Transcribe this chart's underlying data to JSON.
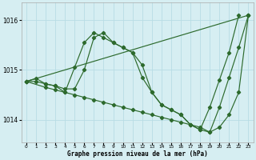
{
  "xlabel": "Graphe pression niveau de la mer (hPa)",
  "background_color": "#d6eef2",
  "grid_color": "#b8dde4",
  "line_color": "#2d6a2d",
  "xlim": [
    -0.5,
    23.5
  ],
  "ylim": [
    1013.55,
    1016.35
  ],
  "yticks": [
    1014,
    1015,
    1016
  ],
  "xticks": [
    0,
    1,
    2,
    3,
    4,
    5,
    6,
    7,
    8,
    9,
    10,
    11,
    12,
    13,
    14,
    15,
    16,
    17,
    18,
    19,
    20,
    21,
    22,
    23
  ],
  "series": [
    {
      "x": [
        0,
        1,
        2,
        3,
        4,
        5,
        6,
        7,
        8,
        9,
        10,
        11,
        12,
        13,
        14,
        15,
        16,
        17,
        18,
        19,
        20,
        21,
        22,
        23
      ],
      "y": [
        1014.77,
        1014.83,
        1014.72,
        1014.68,
        1014.55,
        1015.05,
        1015.55,
        1015.75,
        1015.65,
        1015.55,
        1015.45,
        1015.35,
        1014.85,
        1014.55,
        1014.3,
        1014.2,
        1014.1,
        1013.9,
        1013.8,
        1014.25,
        1014.8,
        1015.35,
        1016.1,
        null
      ]
    },
    {
      "x": [
        0,
        23
      ],
      "y": [
        1014.77,
        1016.1
      ]
    },
    {
      "x": [
        0,
        2,
        3,
        4,
        5,
        6,
        7,
        8,
        9,
        10,
        11,
        12,
        13,
        14,
        15,
        16,
        17,
        18,
        19,
        20,
        21,
        22,
        23
      ],
      "y": [
        1014.77,
        1014.65,
        1014.6,
        1014.55,
        1014.5,
        1014.45,
        1014.4,
        1014.35,
        1014.3,
        1014.25,
        1014.2,
        1014.15,
        1014.1,
        1014.05,
        1014.0,
        1013.95,
        1013.9,
        1013.85,
        1013.75,
        1013.85,
        1014.1,
        1014.55,
        1016.1
      ]
    },
    {
      "x": [
        0,
        1,
        2,
        3,
        4,
        5,
        6,
        7,
        8,
        9,
        10,
        11,
        12,
        13,
        14,
        15,
        16,
        17,
        18,
        19,
        20,
        21,
        22,
        23
      ],
      "y": [
        1014.77,
        1014.77,
        1014.72,
        1014.68,
        1014.62,
        1014.62,
        1015.0,
        1015.65,
        1015.75,
        1015.55,
        1015.45,
        1015.35,
        1015.1,
        1014.55,
        1014.3,
        1014.2,
        1014.1,
        1013.9,
        1013.8,
        1013.75,
        1014.25,
        1014.85,
        1015.45,
        1016.1
      ]
    }
  ]
}
